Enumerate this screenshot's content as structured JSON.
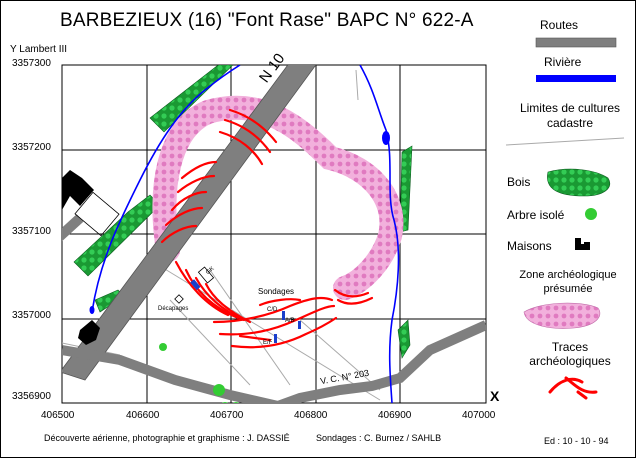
{
  "title": "BARBEZIEUX  (16)  \"Font Rase\"   BAPC N° 622-A",
  "axes": {
    "y_label": "Y  Lambert III",
    "x_label": "X",
    "y_ticks": [
      "3357300",
      "3357200",
      "3357100",
      "3357000",
      "3356900"
    ],
    "x_ticks": [
      "406500",
      "406600",
      "406700",
      "406800",
      "406900",
      "407000"
    ]
  },
  "map_labels": {
    "road": "N 10",
    "gk": "GK",
    "sondages": "Sondages",
    "decapages": "Décapages",
    "cd": "C/D",
    "ab": "A/B",
    "ef": "E/F",
    "vc": "V. C. N° 203"
  },
  "legend": {
    "routes": "Routes",
    "riviere": "Rivière",
    "limites_line1": "Limites de cultures",
    "limites_line2": "cadastre",
    "bois": "Bois",
    "arbre": "Arbre isolé",
    "maisons": "Maisons",
    "zone_line1": "Zone archéologique",
    "zone_line2": "présumée",
    "traces_line1": "Traces",
    "traces_line2": "archéologiques"
  },
  "footer": {
    "credit": "Découverte aérienne, photographie et graphisme : J. DASSIÉ",
    "sondages": "Sondages : C. Burnez / SAHLB",
    "edition": "Ed : 10 - 10 - 94"
  },
  "colors": {
    "road": "#7f7f7f",
    "river": "#0000ff",
    "wood": "#1a9933",
    "zone": "#f2a6d6",
    "traces": "#ff0000",
    "houses": "#000000"
  }
}
